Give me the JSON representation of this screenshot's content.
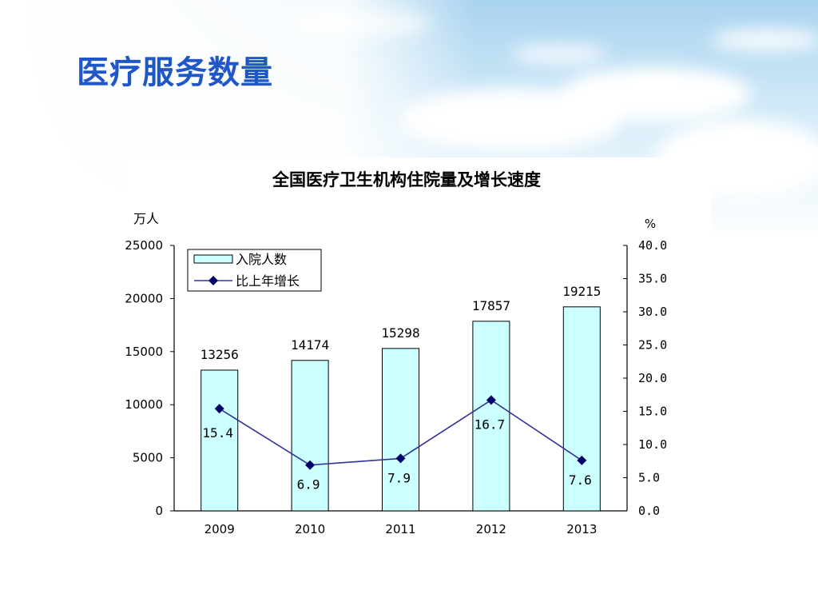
{
  "slide": {
    "title": "医疗服务数量"
  },
  "chart_data": {
    "type": "bar",
    "title": "全国医疗卫生机构住院量及增长速度",
    "categories": [
      "2009",
      "2010",
      "2011",
      "2012",
      "2013"
    ],
    "series": [
      {
        "name": "入院人数",
        "kind": "bar",
        "axis": "left",
        "values": [
          13256,
          14174,
          15298,
          17857,
          19215
        ],
        "labels": [
          "13256",
          "14174",
          "15298",
          "17857",
          "19215"
        ],
        "color": "#ccffff"
      },
      {
        "name": "比上年增长",
        "kind": "line",
        "axis": "right",
        "values": [
          15.4,
          6.9,
          7.9,
          16.7,
          7.6
        ],
        "labels": [
          "15.4",
          "6.9",
          "7.9",
          "16.7",
          "7.6"
        ],
        "color": "#333399"
      }
    ],
    "y_left": {
      "unit": "万人",
      "min": 0,
      "max": 25000,
      "ticks": [
        "0",
        "5000",
        "10000",
        "15000",
        "20000",
        "25000"
      ]
    },
    "y_right": {
      "unit": "%",
      "min": 0,
      "max": 40,
      "ticks": [
        "0.0",
        "5.0",
        "10.0",
        "15.0",
        "20.0",
        "25.0",
        "30.0",
        "35.0",
        "40.0"
      ]
    },
    "legend": "top-left",
    "grid": false
  }
}
